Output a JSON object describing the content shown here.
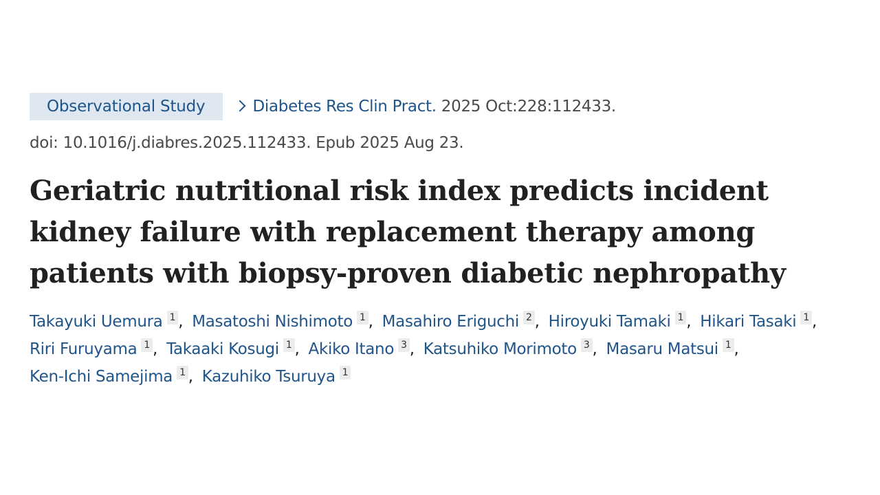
{
  "header": {
    "article_type": "Observational Study",
    "journal": "Diabetes Res Clin Pract.",
    "citation": "2025 Oct:228:112433.",
    "doi_line": "doi: 10.1016/j.diabres.2025.112433. Epub 2025 Aug 23."
  },
  "title_lines": [
    "Geriatric nutritional risk index predicts incident",
    "kidney failure with replacement therapy among",
    "patients with biopsy-proven diabetic nephropathy"
  ],
  "authors": [
    {
      "name": "Takayuki Uemura",
      "aff": "1"
    },
    {
      "name": "Masatoshi Nishimoto",
      "aff": "1"
    },
    {
      "name": "Masahiro Eriguchi",
      "aff": "2"
    },
    {
      "name": "Hiroyuki Tamaki",
      "aff": "1"
    },
    {
      "name": "Hikari Tasaki",
      "aff": "1"
    },
    {
      "name": "Riri Furuyama",
      "aff": "1"
    },
    {
      "name": "Takaaki Kosugi",
      "aff": "1"
    },
    {
      "name": "Akiko Itano",
      "aff": "3"
    },
    {
      "name": "Katsuhiko Morimoto",
      "aff": "3"
    },
    {
      "name": "Masaru Matsui",
      "aff": "1"
    },
    {
      "name": "Ken-Ichi Samejima",
      "aff": "1"
    },
    {
      "name": "Kazuhiko Tsuruya",
      "aff": "1"
    }
  ],
  "colors": {
    "link": "#20558a",
    "badge_bg": "#dfe7f0",
    "text": "#212121",
    "muted": "#4a4a4a"
  }
}
